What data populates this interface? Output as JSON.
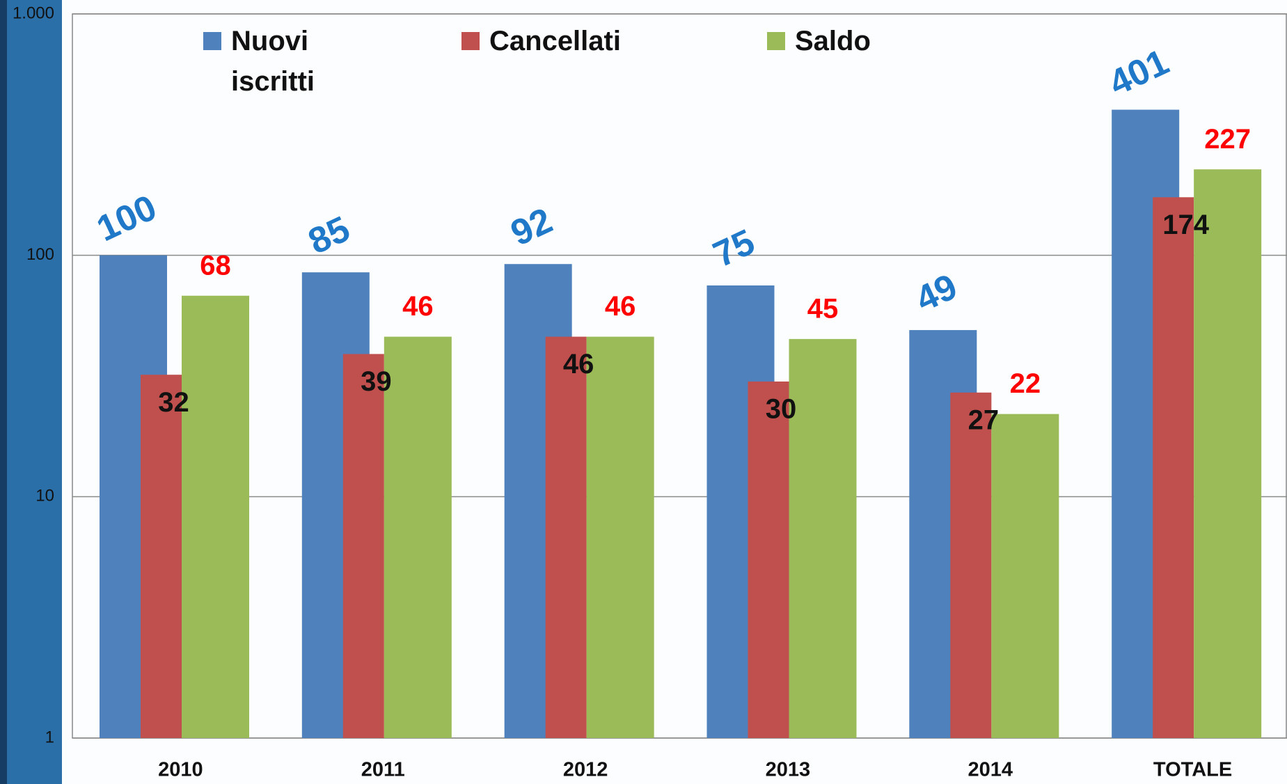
{
  "chart_data": {
    "type": "bar",
    "categories": [
      "2010",
      "2011",
      "2012",
      "2013",
      "2014",
      "TOTALE"
    ],
    "series": [
      {
        "name": "Nuovi iscritti",
        "color": "#4f81bd",
        "values": [
          100,
          85,
          92,
          75,
          49,
          401
        ]
      },
      {
        "name": "Cancellati",
        "color": "#c0504d",
        "values": [
          32,
          39,
          46,
          30,
          27,
          174
        ]
      },
      {
        "name": "Saldo",
        "color": "#9bbb59",
        "values": [
          68,
          46,
          46,
          45,
          22,
          227
        ]
      }
    ],
    "log_scale": true,
    "ylim": [
      1,
      1000
    ],
    "yticks": [
      1,
      10,
      100,
      {
        "value": 1000,
        "label": "1.000"
      }
    ],
    "grid": true,
    "legend": "top"
  }
}
